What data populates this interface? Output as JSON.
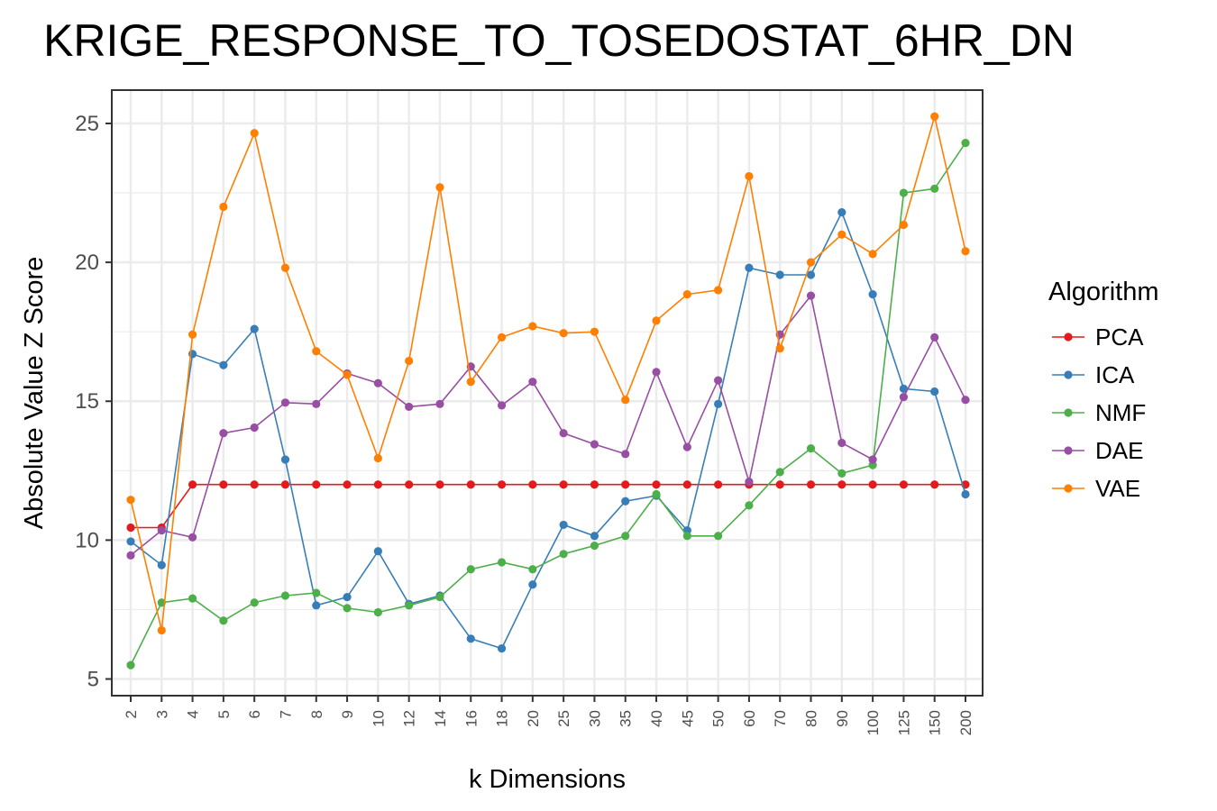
{
  "chart_data": {
    "type": "line",
    "title": "KRIGE_RESPONSE_TO_TOSEDOSTAT_6HR_DN",
    "xlabel": "k Dimensions",
    "ylabel": "Absolute Value Z Score",
    "ylim": [
      4.4,
      26.2
    ],
    "yticks": [
      5,
      10,
      15,
      20,
      25
    ],
    "grid": true,
    "legend_title": "Algorithm",
    "legend_position": "right",
    "categories": [
      "2",
      "3",
      "4",
      "5",
      "6",
      "7",
      "8",
      "9",
      "10",
      "12",
      "14",
      "16",
      "18",
      "20",
      "25",
      "30",
      "35",
      "40",
      "45",
      "50",
      "60",
      "70",
      "80",
      "90",
      "100",
      "125",
      "150",
      "200"
    ],
    "series": [
      {
        "name": "PCA",
        "color": "#E41A1C",
        "values": [
          10.45,
          10.45,
          12.0,
          12.0,
          12.0,
          12.0,
          12.0,
          12.0,
          12.0,
          12.0,
          12.0,
          12.0,
          12.0,
          12.0,
          12.0,
          12.0,
          12.0,
          12.0,
          12.0,
          12.0,
          12.0,
          12.0,
          12.0,
          12.0,
          12.0,
          12.0,
          12.0,
          12.0
        ]
      },
      {
        "name": "ICA",
        "color": "#377EB8",
        "values": [
          9.95,
          9.1,
          16.7,
          16.3,
          17.6,
          12.9,
          7.65,
          7.95,
          9.6,
          7.7,
          8.0,
          6.45,
          6.1,
          8.4,
          10.55,
          10.15,
          11.4,
          11.6,
          10.35,
          14.9,
          19.8,
          19.55,
          19.55,
          21.8,
          18.85,
          15.45,
          15.35,
          11.65
        ]
      },
      {
        "name": "NMF",
        "color": "#4DAF4A",
        "values": [
          5.5,
          7.75,
          7.9,
          7.1,
          7.75,
          8.0,
          8.1,
          7.55,
          7.4,
          7.65,
          7.95,
          8.95,
          9.2,
          8.95,
          9.5,
          9.8,
          10.15,
          11.65,
          10.15,
          10.15,
          11.25,
          12.45,
          13.3,
          12.4,
          12.7,
          22.5,
          22.65,
          24.3
        ]
      },
      {
        "name": "DAE",
        "color": "#984EA3",
        "values": [
          9.45,
          10.35,
          10.1,
          13.85,
          14.05,
          14.95,
          14.9,
          16.0,
          15.65,
          14.8,
          14.9,
          16.25,
          14.85,
          15.7,
          13.85,
          13.45,
          13.1,
          16.05,
          13.35,
          15.75,
          12.1,
          17.4,
          18.8,
          13.5,
          12.9,
          15.15,
          17.3,
          15.05
        ]
      },
      {
        "name": "VAE",
        "color": "#FF7F00",
        "values": [
          11.45,
          6.75,
          17.4,
          22.0,
          24.65,
          19.8,
          16.8,
          15.95,
          12.95,
          16.45,
          22.7,
          15.7,
          17.3,
          17.7,
          17.45,
          17.5,
          15.05,
          17.9,
          18.85,
          19.0,
          23.1,
          16.9,
          20.0,
          21.0,
          20.3,
          21.35,
          25.25,
          20.4
        ]
      }
    ]
  }
}
